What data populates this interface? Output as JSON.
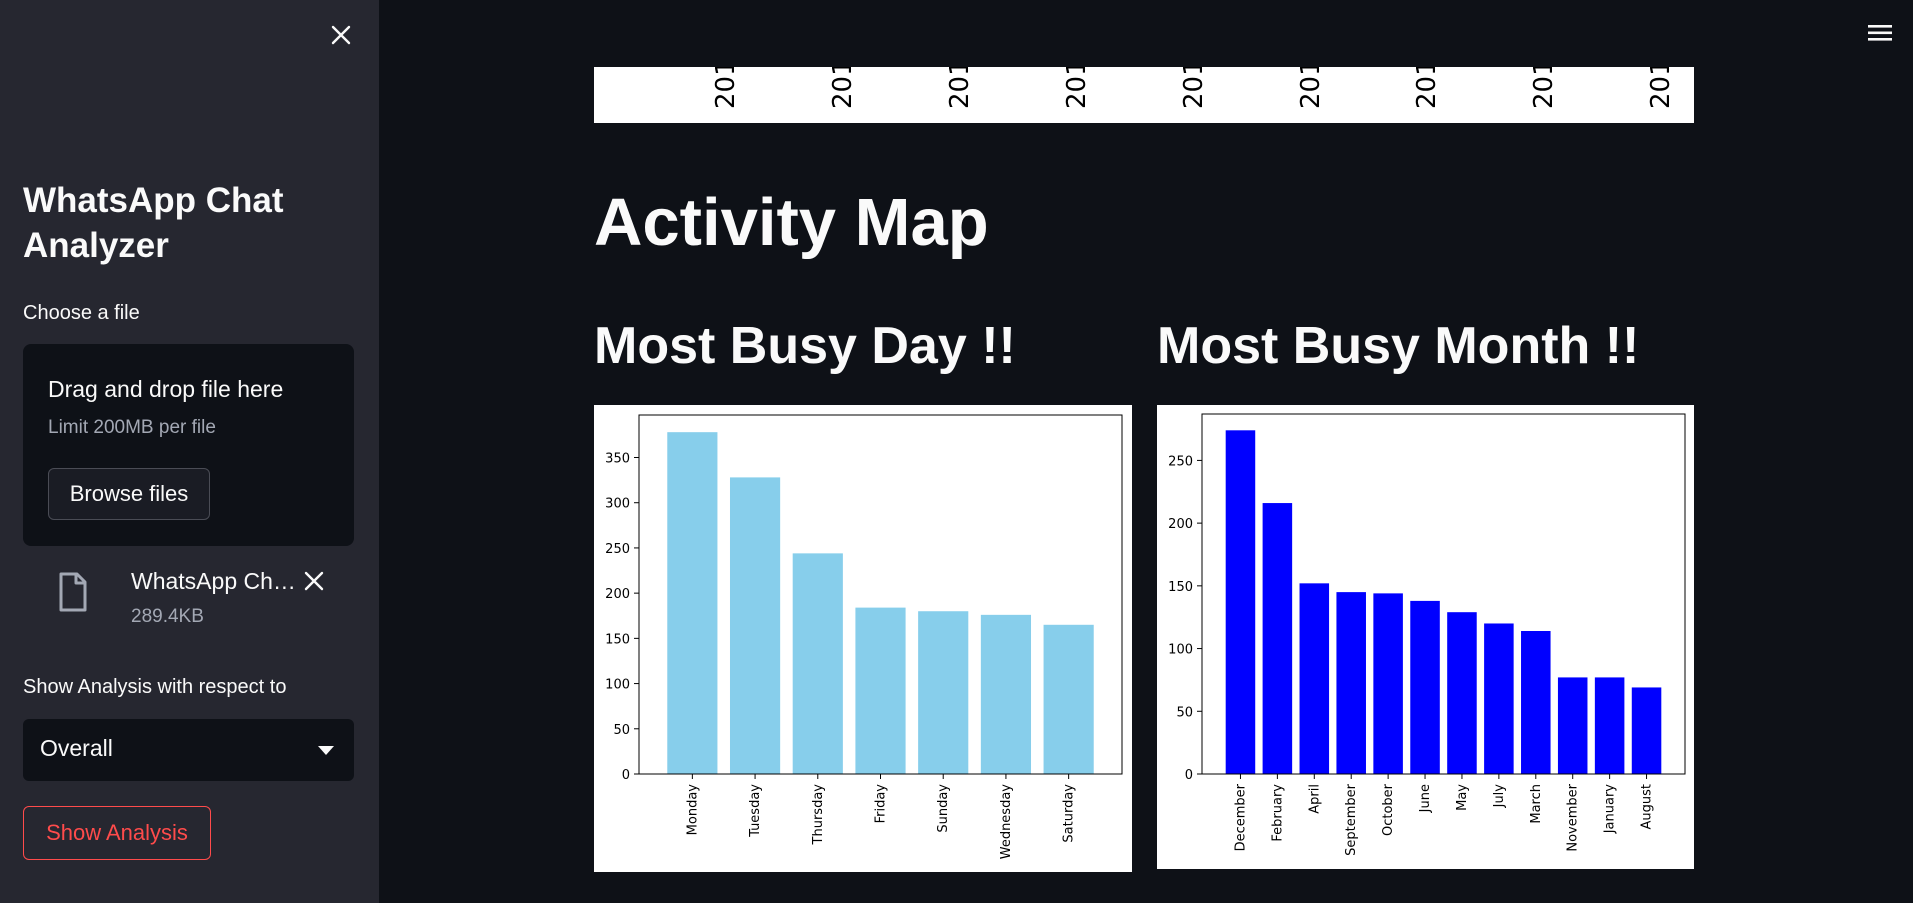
{
  "sidebar": {
    "app_title": "WhatsApp Chat Analyzer",
    "file_label": "Choose a file",
    "dropzone_title": "Drag and drop file here",
    "dropzone_limit": "Limit 200MB per file",
    "browse_label": "Browse files",
    "uploaded_file_name": "WhatsApp Ch…",
    "uploaded_file_size": "289.4KB",
    "analysis_label": "Show Analysis with respect to",
    "selected_option": "Overall",
    "show_button_label": "Show Analysis",
    "icons": [
      "close-icon",
      "file-icon",
      "remove-icon",
      "chevron-down-icon"
    ]
  },
  "header": {
    "menu_icon": "hamburger-menu-icon"
  },
  "top_chart": {
    "tick_labels": [
      "201",
      "201",
      "201",
      "201",
      "201",
      "201",
      "201",
      "201",
      "201"
    ]
  },
  "main": {
    "title": "Activity Map",
    "busy_day_title": "Most Busy Day !!",
    "busy_month_title": "Most Busy Month !!"
  },
  "colors": {
    "accent_red": "#ff4b4b",
    "day_bar": "#87ceeb",
    "month_bar": "#0000ff"
  },
  "chart_data": [
    {
      "type": "bar",
      "categories": [
        "Monday",
        "Tuesday",
        "Thursday",
        "Friday",
        "Sunday",
        "Wednesday",
        "Saturday"
      ],
      "values": [
        378,
        328,
        244,
        184,
        180,
        176,
        165
      ],
      "ylim": [
        0,
        397
      ],
      "yticks": [
        0,
        50,
        100,
        150,
        200,
        250,
        300,
        350
      ],
      "title": "",
      "xlabel": "",
      "ylabel": "",
      "grid": false
    },
    {
      "type": "bar",
      "categories": [
        "December",
        "February",
        "April",
        "September",
        "October",
        "June",
        "May",
        "July",
        "March",
        "November",
        "January",
        "August"
      ],
      "values": [
        274,
        216,
        152,
        145,
        144,
        138,
        129,
        120,
        114,
        77,
        77,
        69
      ],
      "ylim": [
        0,
        287
      ],
      "yticks": [
        0,
        50,
        100,
        150,
        200,
        250
      ],
      "title": "",
      "xlabel": "",
      "ylabel": "",
      "grid": false
    }
  ]
}
